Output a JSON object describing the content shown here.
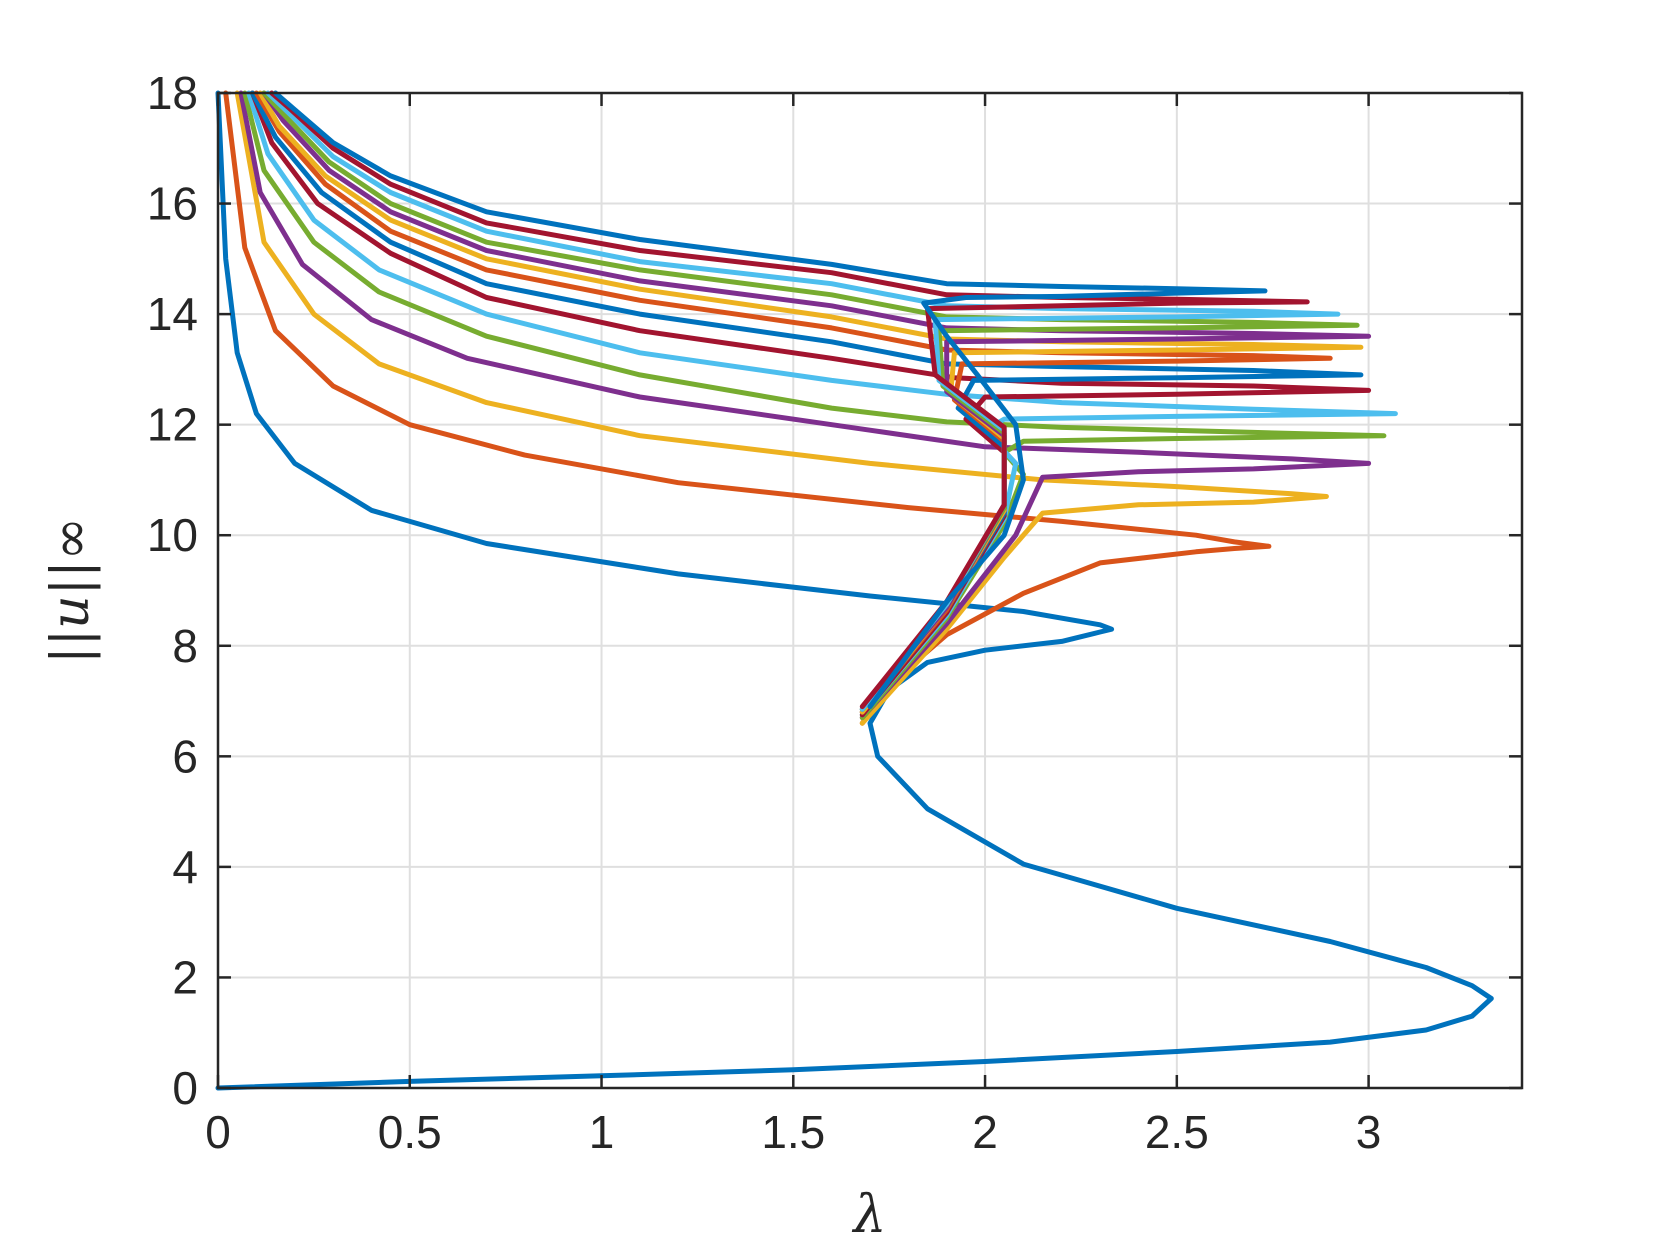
{
  "chart_data": {
    "type": "line",
    "xlabel": "λ",
    "ylabel": "||u||∞",
    "xlim": [
      0,
      3.4
    ],
    "ylim": [
      0,
      18
    ],
    "xticks": [
      0,
      0.5,
      1,
      1.5,
      2,
      2.5,
      3
    ],
    "xtick_labels": [
      "0",
      "0.5",
      "1",
      "1.5",
      "2",
      "2.5",
      "3"
    ],
    "yticks": [
      0,
      2,
      4,
      6,
      8,
      10,
      12,
      14,
      16,
      18
    ],
    "ytick_labels": [
      "0",
      "2",
      "4",
      "6",
      "8",
      "10",
      "12",
      "14",
      "16",
      "18"
    ],
    "grid": true,
    "legend": "none",
    "series": [
      {
        "color": "#0072BD",
        "points": [
          [
            0,
            0
          ],
          [
            0.5,
            0.12
          ],
          [
            1,
            0.22
          ],
          [
            1.5,
            0.33
          ],
          [
            2,
            0.48
          ],
          [
            2.5,
            0.66
          ],
          [
            2.9,
            0.83
          ],
          [
            3.15,
            1.05
          ],
          [
            3.27,
            1.3
          ],
          [
            3.32,
            1.62
          ],
          [
            3.27,
            1.85
          ],
          [
            3.15,
            2.18
          ],
          [
            2.9,
            2.65
          ],
          [
            2.5,
            3.25
          ],
          [
            2.1,
            4.05
          ],
          [
            1.85,
            5.05
          ],
          [
            1.72,
            6.0
          ],
          [
            1.7,
            6.6
          ],
          [
            1.75,
            7.2
          ],
          [
            1.85,
            7.7
          ],
          [
            2.0,
            7.92
          ],
          [
            2.2,
            8.08
          ],
          [
            2.3,
            8.25
          ],
          [
            2.33,
            8.3
          ],
          [
            2.3,
            8.38
          ],
          [
            2.1,
            8.62
          ],
          [
            1.7,
            8.9
          ],
          [
            1.2,
            9.3
          ],
          [
            0.7,
            9.85
          ],
          [
            0.4,
            10.45
          ],
          [
            0.2,
            11.3
          ],
          [
            0.1,
            12.2
          ],
          [
            0.05,
            13.3
          ],
          [
            0.02,
            15.0
          ],
          [
            0,
            18
          ]
        ]
      },
      {
        "color": "#D95319",
        "points": [
          [
            1.68,
            6.6
          ],
          [
            1.75,
            7.3
          ],
          [
            1.9,
            8.2
          ],
          [
            2.1,
            8.95
          ],
          [
            2.3,
            9.5
          ],
          [
            2.55,
            9.7
          ],
          [
            2.65,
            9.76
          ],
          [
            2.74,
            9.8
          ],
          [
            2.65,
            9.88
          ],
          [
            2.55,
            10.0
          ],
          [
            2.2,
            10.25
          ],
          [
            1.8,
            10.5
          ],
          [
            1.2,
            10.95
          ],
          [
            0.8,
            11.45
          ],
          [
            0.5,
            12.0
          ],
          [
            0.3,
            12.7
          ],
          [
            0.15,
            13.7
          ],
          [
            0.07,
            15.2
          ],
          [
            0.02,
            18
          ]
        ]
      },
      {
        "color": "#EDB120",
        "points": [
          [
            1.68,
            6.6
          ],
          [
            1.9,
            8.3
          ],
          [
            2.05,
            9.6
          ],
          [
            2.15,
            10.4
          ],
          [
            2.4,
            10.55
          ],
          [
            2.7,
            10.6
          ],
          [
            2.89,
            10.7
          ],
          [
            2.8,
            10.75
          ],
          [
            2.5,
            10.88
          ],
          [
            2.15,
            11.0
          ],
          [
            1.7,
            11.3
          ],
          [
            1.1,
            11.8
          ],
          [
            0.7,
            12.4
          ],
          [
            0.42,
            13.1
          ],
          [
            0.25,
            14.0
          ],
          [
            0.12,
            15.3
          ],
          [
            0.05,
            18
          ]
        ]
      },
      {
        "color": "#7E2F8E",
        "points": [
          [
            1.68,
            6.7
          ],
          [
            1.9,
            8.4
          ],
          [
            2.08,
            10.0
          ],
          [
            2.15,
            11.05
          ],
          [
            2.4,
            11.15
          ],
          [
            2.7,
            11.2
          ],
          [
            3.0,
            11.3
          ],
          [
            2.8,
            11.38
          ],
          [
            2.4,
            11.5
          ],
          [
            2.0,
            11.6
          ],
          [
            1.7,
            11.9
          ],
          [
            1.1,
            12.5
          ],
          [
            0.65,
            13.2
          ],
          [
            0.4,
            13.9
          ],
          [
            0.22,
            14.9
          ],
          [
            0.11,
            16.2
          ],
          [
            0.06,
            18
          ]
        ]
      },
      {
        "color": "#77AC30",
        "points": [
          [
            1.68,
            6.7
          ],
          [
            1.9,
            8.5
          ],
          [
            2.05,
            10.2
          ],
          [
            2.1,
            11.1
          ],
          [
            2.05,
            11.5
          ],
          [
            2.1,
            11.7
          ],
          [
            2.5,
            11.75
          ],
          [
            3.04,
            11.8
          ],
          [
            2.7,
            11.86
          ],
          [
            2.2,
            11.95
          ],
          [
            1.9,
            12.05
          ],
          [
            1.6,
            12.3
          ],
          [
            1.1,
            12.9
          ],
          [
            0.7,
            13.6
          ],
          [
            0.42,
            14.4
          ],
          [
            0.25,
            15.3
          ],
          [
            0.12,
            16.6
          ],
          [
            0.07,
            18
          ]
        ]
      },
      {
        "color": "#4DBEEE",
        "points": [
          [
            1.68,
            6.75
          ],
          [
            1.9,
            8.55
          ],
          [
            2.05,
            10.3
          ],
          [
            2.08,
            11.3
          ],
          [
            2.0,
            11.9
          ],
          [
            2.05,
            12.1
          ],
          [
            2.5,
            12.15
          ],
          [
            3.07,
            12.2
          ],
          [
            2.7,
            12.28
          ],
          [
            2.2,
            12.4
          ],
          [
            1.9,
            12.55
          ],
          [
            1.6,
            12.8
          ],
          [
            1.1,
            13.3
          ],
          [
            0.7,
            14.0
          ],
          [
            0.42,
            14.8
          ],
          [
            0.25,
            15.7
          ],
          [
            0.13,
            16.9
          ],
          [
            0.08,
            18
          ]
        ]
      },
      {
        "color": "#A2142F",
        "points": [
          [
            1.68,
            6.75
          ],
          [
            1.9,
            8.6
          ],
          [
            2.05,
            10.35
          ],
          [
            2.05,
            11.5
          ],
          [
            1.95,
            12.1
          ],
          [
            2.0,
            12.5
          ],
          [
            2.5,
            12.55
          ],
          [
            3.0,
            12.62
          ],
          [
            2.7,
            12.7
          ],
          [
            2.2,
            12.75
          ],
          [
            1.92,
            12.85
          ],
          [
            1.6,
            13.2
          ],
          [
            1.1,
            13.7
          ],
          [
            0.7,
            14.3
          ],
          [
            0.45,
            15.1
          ],
          [
            0.26,
            16.0
          ],
          [
            0.14,
            17.1
          ],
          [
            0.09,
            18
          ]
        ]
      },
      {
        "color": "#0072BD",
        "points": [
          [
            1.68,
            6.8
          ],
          [
            1.9,
            8.65
          ],
          [
            2.05,
            10.4
          ],
          [
            2.05,
            11.6
          ],
          [
            1.93,
            12.3
          ],
          [
            1.97,
            12.8
          ],
          [
            2.5,
            12.85
          ],
          [
            2.98,
            12.9
          ],
          [
            2.7,
            12.98
          ],
          [
            2.2,
            13.05
          ],
          [
            1.9,
            13.1
          ],
          [
            1.6,
            13.5
          ],
          [
            1.1,
            14.0
          ],
          [
            0.7,
            14.55
          ],
          [
            0.45,
            15.3
          ],
          [
            0.27,
            16.2
          ],
          [
            0.15,
            17.2
          ],
          [
            0.09,
            18
          ]
        ]
      },
      {
        "color": "#D95319",
        "points": [
          [
            1.68,
            6.8
          ],
          [
            1.9,
            8.65
          ],
          [
            2.05,
            10.45
          ],
          [
            2.05,
            11.7
          ],
          [
            1.92,
            12.45
          ],
          [
            1.94,
            13.1
          ],
          [
            2.5,
            13.15
          ],
          [
            2.9,
            13.2
          ],
          [
            2.7,
            13.25
          ],
          [
            2.2,
            13.3
          ],
          [
            1.9,
            13.35
          ],
          [
            1.6,
            13.75
          ],
          [
            1.1,
            14.25
          ],
          [
            0.7,
            14.8
          ],
          [
            0.45,
            15.5
          ],
          [
            0.28,
            16.35
          ],
          [
            0.16,
            17.3
          ],
          [
            0.1,
            18
          ]
        ]
      },
      {
        "color": "#EDB120",
        "points": [
          [
            1.68,
            6.8
          ],
          [
            1.9,
            8.7
          ],
          [
            2.05,
            10.45
          ],
          [
            2.05,
            11.75
          ],
          [
            1.91,
            12.55
          ],
          [
            1.92,
            13.3
          ],
          [
            2.5,
            13.35
          ],
          [
            2.98,
            13.4
          ],
          [
            2.7,
            13.45
          ],
          [
            2.2,
            13.5
          ],
          [
            1.9,
            13.55
          ],
          [
            1.6,
            13.95
          ],
          [
            1.1,
            14.45
          ],
          [
            0.7,
            15.0
          ],
          [
            0.45,
            15.7
          ],
          [
            0.28,
            16.5
          ],
          [
            0.16,
            17.4
          ],
          [
            0.11,
            18
          ]
        ]
      },
      {
        "color": "#7E2F8E",
        "points": [
          [
            1.68,
            6.85
          ],
          [
            1.9,
            8.7
          ],
          [
            2.05,
            10.5
          ],
          [
            2.05,
            11.8
          ],
          [
            1.9,
            12.6
          ],
          [
            1.9,
            13.5
          ],
          [
            2.5,
            13.55
          ],
          [
            3.0,
            13.6
          ],
          [
            2.7,
            13.65
          ],
          [
            2.2,
            13.7
          ],
          [
            1.9,
            13.75
          ],
          [
            1.6,
            14.15
          ],
          [
            1.1,
            14.6
          ],
          [
            0.7,
            15.15
          ],
          [
            0.45,
            15.85
          ],
          [
            0.29,
            16.6
          ],
          [
            0.17,
            17.5
          ],
          [
            0.12,
            18
          ]
        ]
      },
      {
        "color": "#77AC30",
        "points": [
          [
            1.68,
            6.85
          ],
          [
            1.9,
            8.75
          ],
          [
            2.05,
            10.5
          ],
          [
            2.05,
            11.85
          ],
          [
            1.89,
            12.7
          ],
          [
            1.88,
            13.7
          ],
          [
            2.5,
            13.75
          ],
          [
            2.97,
            13.8
          ],
          [
            2.7,
            13.85
          ],
          [
            2.2,
            13.9
          ],
          [
            1.9,
            13.95
          ],
          [
            1.6,
            14.35
          ],
          [
            1.1,
            14.8
          ],
          [
            0.7,
            15.3
          ],
          [
            0.45,
            16.0
          ],
          [
            0.29,
            16.75
          ],
          [
            0.18,
            17.55
          ],
          [
            0.12,
            18
          ]
        ]
      },
      {
        "color": "#4DBEEE",
        "points": [
          [
            1.68,
            6.85
          ],
          [
            1.9,
            8.75
          ],
          [
            2.05,
            10.55
          ],
          [
            2.05,
            11.9
          ],
          [
            1.88,
            12.8
          ],
          [
            1.87,
            13.9
          ],
          [
            2.5,
            13.95
          ],
          [
            2.92,
            14.0
          ],
          [
            2.7,
            14.05
          ],
          [
            2.2,
            14.1
          ],
          [
            1.9,
            14.15
          ],
          [
            1.6,
            14.55
          ],
          [
            1.1,
            14.95
          ],
          [
            0.7,
            15.5
          ],
          [
            0.45,
            16.2
          ],
          [
            0.3,
            16.85
          ],
          [
            0.19,
            17.6
          ],
          [
            0.13,
            18
          ]
        ]
      },
      {
        "color": "#A2142F",
        "points": [
          [
            1.68,
            6.9
          ],
          [
            1.9,
            8.8
          ],
          [
            2.05,
            10.55
          ],
          [
            2.05,
            11.95
          ],
          [
            1.87,
            12.9
          ],
          [
            1.85,
            14.1
          ],
          [
            2.2,
            14.15
          ],
          [
            2.5,
            14.2
          ],
          [
            2.84,
            14.22
          ],
          [
            2.5,
            14.27
          ],
          [
            2.2,
            14.3
          ],
          [
            1.9,
            14.35
          ],
          [
            1.6,
            14.75
          ],
          [
            1.1,
            15.15
          ],
          [
            0.7,
            15.65
          ],
          [
            0.45,
            16.35
          ],
          [
            0.3,
            17.0
          ],
          [
            0.19,
            17.7
          ],
          [
            0.14,
            18
          ]
        ]
      },
      {
        "color": "#0072BD",
        "points": [
          [
            1.7,
            6.9
          ],
          [
            1.9,
            8.8
          ],
          [
            2.05,
            10.0
          ],
          [
            2.1,
            11.0
          ],
          [
            2.08,
            12.0
          ],
          [
            1.98,
            12.9
          ],
          [
            1.9,
            13.6
          ],
          [
            1.84,
            14.2
          ],
          [
            1.95,
            14.3
          ],
          [
            2.2,
            14.32
          ],
          [
            2.5,
            14.38
          ],
          [
            2.73,
            14.42
          ],
          [
            2.5,
            14.46
          ],
          [
            2.2,
            14.5
          ],
          [
            1.9,
            14.55
          ],
          [
            1.6,
            14.9
          ],
          [
            1.1,
            15.35
          ],
          [
            0.7,
            15.85
          ],
          [
            0.45,
            16.5
          ],
          [
            0.3,
            17.1
          ],
          [
            0.2,
            17.7
          ],
          [
            0.15,
            18
          ]
        ]
      }
    ]
  }
}
